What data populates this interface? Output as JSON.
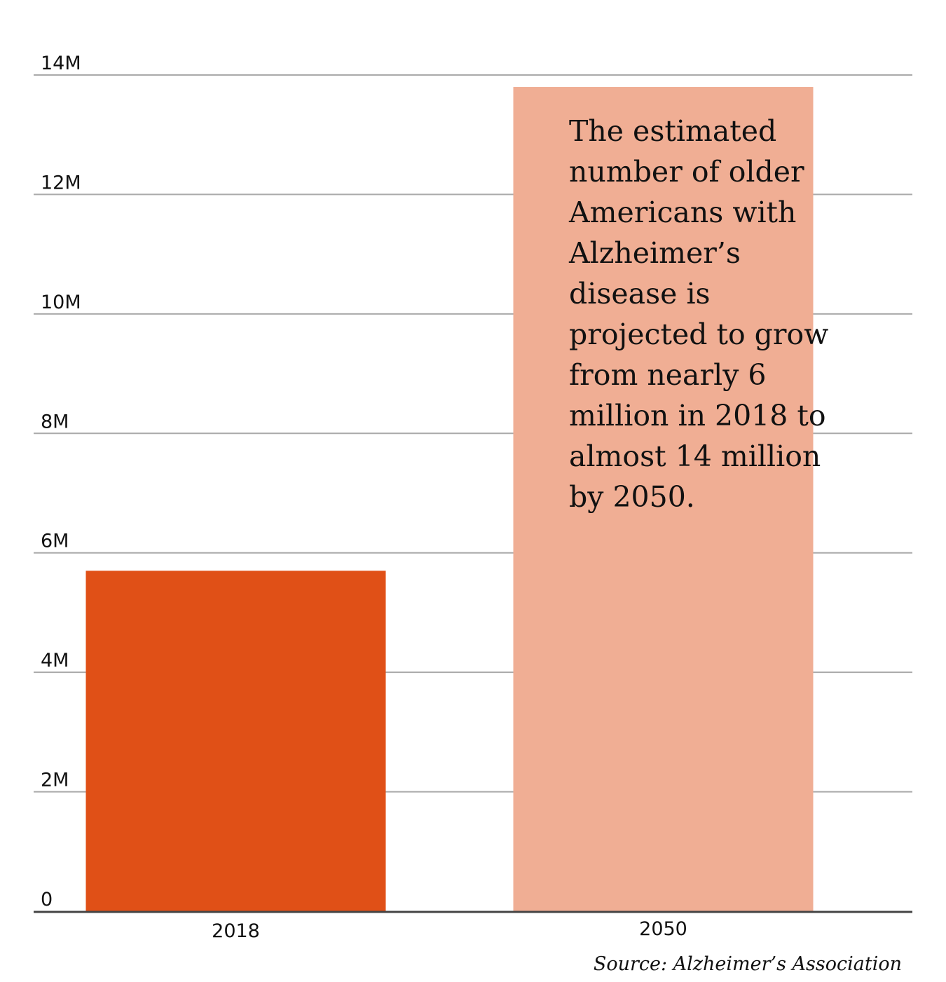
{
  "chart_data": {
    "type": "bar",
    "title": "",
    "xlabel": "",
    "ylabel": "",
    "categories": [
      "2018",
      "2050"
    ],
    "values": [
      5.7,
      13.8
    ],
    "units": "millions",
    "ylim": [
      0,
      14
    ],
    "yticks": [
      0,
      2,
      4,
      6,
      8,
      10,
      12,
      14
    ],
    "ytick_labels": [
      "0",
      "2M",
      "4M",
      "6M",
      "8M",
      "10M",
      "12M",
      "14M"
    ],
    "grid": true,
    "bar_colors": [
      "#E05017",
      "#F0AE94"
    ],
    "annotation": "The estimated number of older Americans with Alzheimer’s disease is projected to grow from nearly 6 million in 2018 to almost 14 million by 2050.",
    "source": "Source: Alzheimer’s Association"
  },
  "colors": {
    "gridline": "#aaaaaa",
    "baseline": "#444444",
    "text": "#111111"
  }
}
